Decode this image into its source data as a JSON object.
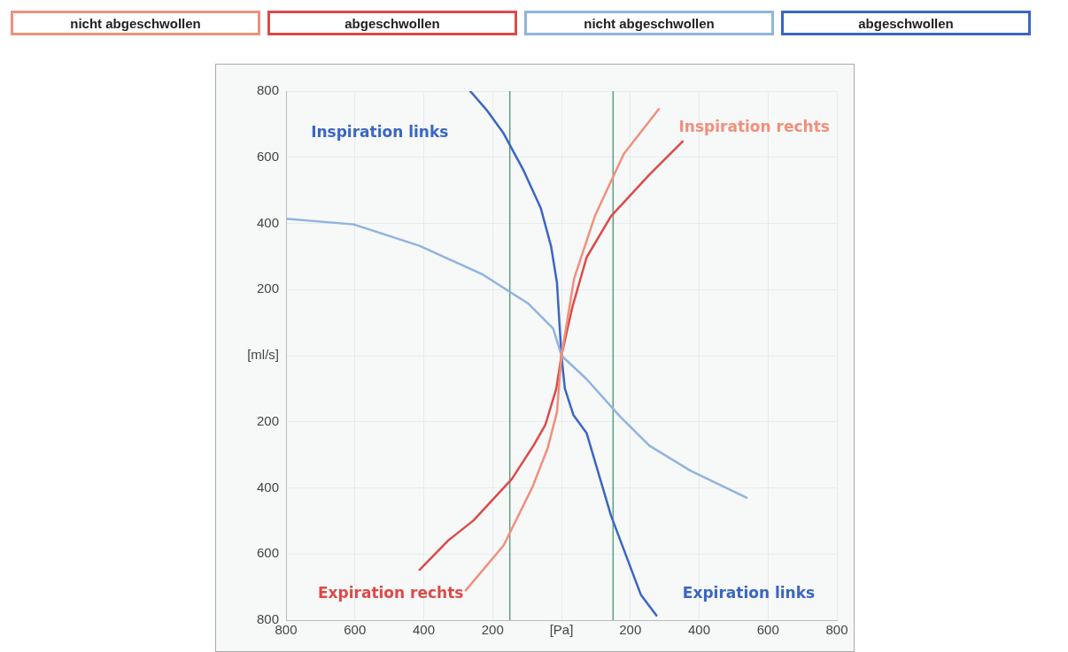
{
  "chart_data": {
    "type": "line",
    "legend": "top",
    "grid": true,
    "marker": "none",
    "line_style": "solid",
    "xlim": [
      -800,
      800
    ],
    "ylim": [
      -800,
      800
    ],
    "xticks": [
      {
        "value": -800,
        "label": "800"
      },
      {
        "value": -600,
        "label": "600"
      },
      {
        "value": -400,
        "label": "400"
      },
      {
        "value": -200,
        "label": "200"
      },
      {
        "value": 0,
        "label": "[Pa]"
      },
      200,
      400,
      600,
      800
    ],
    "yticks": [
      {
        "value": -800,
        "label": "800"
      },
      {
        "value": -600,
        "label": "600"
      },
      {
        "value": -400,
        "label": "400"
      },
      {
        "value": -200,
        "label": "200"
      },
      {
        "value": 0,
        "label": "[ml/s]"
      },
      200,
      400,
      600,
      800
    ],
    "ref_lines": [
      {
        "axis": "x",
        "value": -150,
        "color": "#5f9f80"
      },
      {
        "axis": "x",
        "value": 150,
        "color": "#5f9f80"
      }
    ],
    "annotations": [
      "Inspiration links",
      "Inspiration rechts",
      "Expiration rechts",
      "Expiration links"
    ],
    "series": [
      {
        "name": "nicht abgeschwollen",
        "color": "#f0907c",
        "x": [
          -278,
          -168,
          -84,
          -40,
          -13,
          0,
          37,
          97,
          181,
          283
        ],
        "values": [
          -710,
          -574,
          -397,
          -280,
          -171,
          0,
          234,
          422,
          610,
          746
        ]
      },
      {
        "name": "abgeschwollen",
        "color": "#dc4a48",
        "x": [
          -412,
          -330,
          -255,
          -144,
          -80,
          -47,
          -15,
          0,
          31,
          73,
          144,
          255,
          352
        ],
        "values": [
          -648,
          -560,
          -498,
          -373,
          -270,
          -210,
          -100,
          0,
          144,
          297,
          422,
          547,
          648
        ]
      },
      {
        "name": "nicht abgeschwollen",
        "color": "#8fb4e0",
        "x": [
          -800,
          -604,
          -412,
          -228,
          -97,
          -24,
          0,
          73,
          171,
          255,
          375,
          538
        ],
        "values": [
          414,
          397,
          332,
          245,
          158,
          82,
          0,
          -71,
          -185,
          -272,
          -348,
          -430
        ]
      },
      {
        "name": "abgeschwollen",
        "color": "#3a66c4",
        "x": [
          -265,
          -215,
          -168,
          -110,
          -60,
          -30,
          -13,
          0,
          10,
          35,
          73,
          144,
          231,
          276
        ],
        "values": [
          800,
          740,
          672,
          560,
          446,
          330,
          220,
          0,
          -100,
          -180,
          -234,
          -484,
          -724,
          -786
        ]
      }
    ]
  }
}
